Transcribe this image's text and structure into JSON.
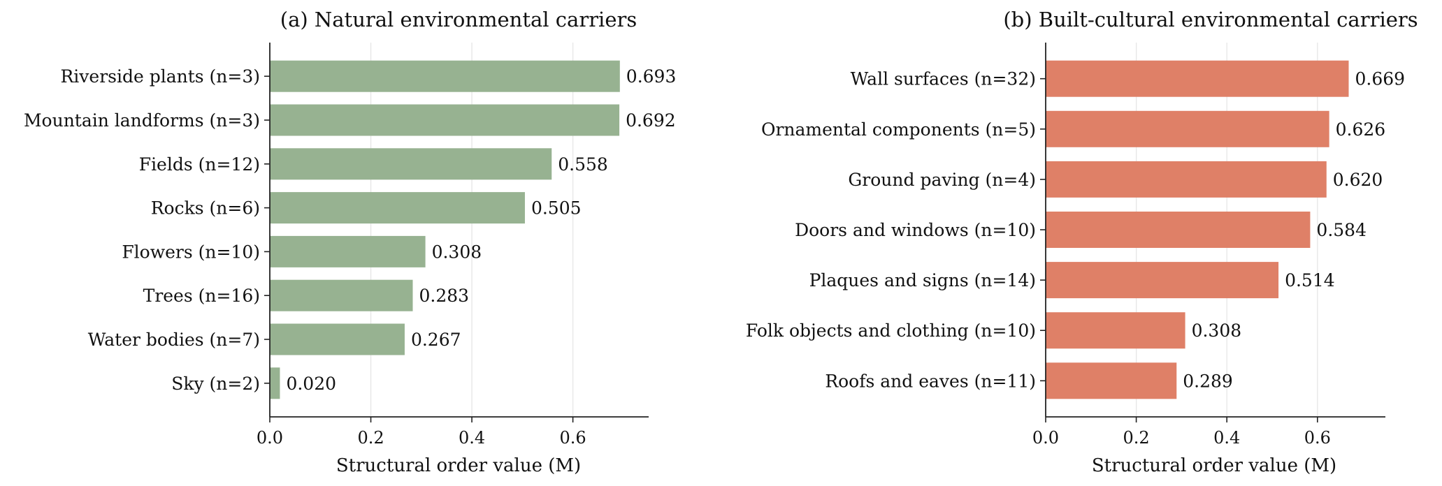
{
  "chart_data": [
    {
      "type": "bar",
      "orientation": "horizontal",
      "title": "(a) Natural environmental carriers",
      "xlabel": "Structural order value (M)",
      "ylabel": "",
      "categories": [
        "Riverside plants (n=3)",
        "Mountain landforms (n=3)",
        "Fields (n=12)",
        "Rocks (n=6)",
        "Flowers (n=10)",
        "Trees (n=16)",
        "Water bodies (n=7)",
        "Sky (n=2)"
      ],
      "values": [
        0.693,
        0.692,
        0.558,
        0.505,
        0.308,
        0.283,
        0.267,
        0.02
      ],
      "value_labels": [
        "0.693",
        "0.692",
        "0.558",
        "0.505",
        "0.308",
        "0.283",
        "0.267",
        "0.020"
      ],
      "xlim": [
        0,
        0.75
      ],
      "xticks": [
        0.0,
        0.2,
        0.4,
        0.6
      ],
      "xtick_labels": [
        "0.0",
        "0.2",
        "0.4",
        "0.6"
      ],
      "grid": "vertical",
      "color": "#97b291"
    },
    {
      "type": "bar",
      "orientation": "horizontal",
      "title": "(b) Built-cultural environmental carriers",
      "xlabel": "Structural order value (M)",
      "ylabel": "",
      "categories": [
        "Wall surfaces (n=32)",
        "Ornamental components (n=5)",
        "Ground paving (n=4)",
        "Doors and windows (n=10)",
        "Plaques and signs (n=14)",
        "Folk objects and clothing (n=10)",
        "Roofs and eaves (n=11)"
      ],
      "values": [
        0.669,
        0.626,
        0.62,
        0.584,
        0.514,
        0.308,
        0.289
      ],
      "value_labels": [
        "0.669",
        "0.626",
        "0.620",
        "0.584",
        "0.514",
        "0.308",
        "0.289"
      ],
      "xlim": [
        0,
        0.75
      ],
      "xticks": [
        0.0,
        0.2,
        0.4,
        0.6
      ],
      "xtick_labels": [
        "0.0",
        "0.2",
        "0.4",
        "0.6"
      ],
      "grid": "vertical",
      "color": "#df8067"
    }
  ]
}
